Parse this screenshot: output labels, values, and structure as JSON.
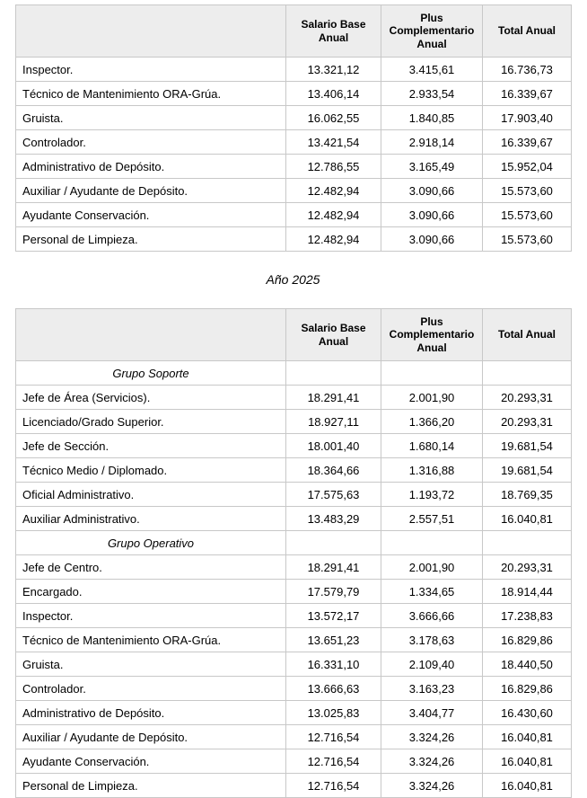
{
  "year_heading": "Año 2025",
  "colors": {
    "header_bg": "#ededed",
    "border": "#c8c8c8",
    "text": "#000000"
  },
  "column_headers": {
    "salario_base": "Salario Base Anual",
    "plus_complementario": "Plus Complementario Anual",
    "total_anual": "Total Anual"
  },
  "tables": [
    {
      "name": "tabla-salarial-superior",
      "headers": [
        "Salario Base Anual",
        "Plus Complementario Anual",
        "Total Anual"
      ],
      "rows": [
        {
          "type": "data",
          "label": "Inspector.",
          "values": [
            "13.321,12",
            "3.415,61",
            "16.736,73"
          ]
        },
        {
          "type": "data",
          "label": "Técnico de Mantenimiento ORA-Grúa.",
          "values": [
            "13.406,14",
            "2.933,54",
            "16.339,67"
          ]
        },
        {
          "type": "data",
          "label": "Gruista.",
          "values": [
            "16.062,55",
            "1.840,85",
            "17.903,40"
          ]
        },
        {
          "type": "data",
          "label": "Controlador.",
          "values": [
            "13.421,54",
            "2.918,14",
            "16.339,67"
          ]
        },
        {
          "type": "data",
          "label": "Administrativo de Depósito.",
          "values": [
            "12.786,55",
            "3.165,49",
            "15.952,04"
          ]
        },
        {
          "type": "data",
          "label": "Auxiliar / Ayudante de Depósito.",
          "values": [
            "12.482,94",
            "3.090,66",
            "15.573,60"
          ]
        },
        {
          "type": "data",
          "label": "Ayudante Conservación.",
          "values": [
            "12.482,94",
            "3.090,66",
            "15.573,60"
          ]
        },
        {
          "type": "data",
          "label": "Personal de Limpieza.",
          "values": [
            "12.482,94",
            "3.090,66",
            "15.573,60"
          ]
        }
      ]
    },
    {
      "name": "tabla-salarial-2025",
      "headers": [
        "Salario Base Anual",
        "Plus Complementario Anual",
        "Total Anual"
      ],
      "rows": [
        {
          "type": "group",
          "label": "Grupo Soporte",
          "values": [
            "",
            "",
            ""
          ]
        },
        {
          "type": "data",
          "label": "Jefe de Área (Servicios).",
          "values": [
            "18.291,41",
            "2.001,90",
            "20.293,31"
          ]
        },
        {
          "type": "data",
          "label": "Licenciado/Grado Superior.",
          "values": [
            "18.927,11",
            "1.366,20",
            "20.293,31"
          ]
        },
        {
          "type": "data",
          "label": "Jefe de Sección.",
          "values": [
            "18.001,40",
            "1.680,14",
            "19.681,54"
          ]
        },
        {
          "type": "data",
          "label": "Técnico Medio / Diplomado.",
          "values": [
            "18.364,66",
            "1.316,88",
            "19.681,54"
          ]
        },
        {
          "type": "data",
          "label": "Oficial Administrativo.",
          "values": [
            "17.575,63",
            "1.193,72",
            "18.769,35"
          ]
        },
        {
          "type": "data",
          "label": "Auxiliar Administrativo.",
          "values": [
            "13.483,29",
            "2.557,51",
            "16.040,81"
          ]
        },
        {
          "type": "group",
          "label": "Grupo Operativo",
          "values": [
            "",
            "",
            ""
          ]
        },
        {
          "type": "data",
          "label": "Jefe de Centro.",
          "values": [
            "18.291,41",
            "2.001,90",
            "20.293,31"
          ]
        },
        {
          "type": "data",
          "label": "Encargado.",
          "values": [
            "17.579,79",
            "1.334,65",
            "18.914,44"
          ]
        },
        {
          "type": "data",
          "label": "Inspector.",
          "values": [
            "13.572,17",
            "3.666,66",
            "17.238,83"
          ]
        },
        {
          "type": "data",
          "label": "Técnico de Mantenimiento ORA-Grúa.",
          "values": [
            "13.651,23",
            "3.178,63",
            "16.829,86"
          ]
        },
        {
          "type": "data",
          "label": "Gruista.",
          "values": [
            "16.331,10",
            "2.109,40",
            "18.440,50"
          ]
        },
        {
          "type": "data",
          "label": "Controlador.",
          "values": [
            "13.666,63",
            "3.163,23",
            "16.829,86"
          ]
        },
        {
          "type": "data",
          "label": "Administrativo de Depósito.",
          "values": [
            "13.025,83",
            "3.404,77",
            "16.430,60"
          ]
        },
        {
          "type": "data",
          "label": "Auxiliar / Ayudante de Depósito.",
          "values": [
            "12.716,54",
            "3.324,26",
            "16.040,81"
          ]
        },
        {
          "type": "data",
          "label": "Ayudante Conservación.",
          "values": [
            "12.716,54",
            "3.324,26",
            "16.040,81"
          ]
        },
        {
          "type": "data",
          "label": "Personal de Limpieza.",
          "values": [
            "12.716,54",
            "3.324,26",
            "16.040,81"
          ]
        }
      ]
    }
  ]
}
